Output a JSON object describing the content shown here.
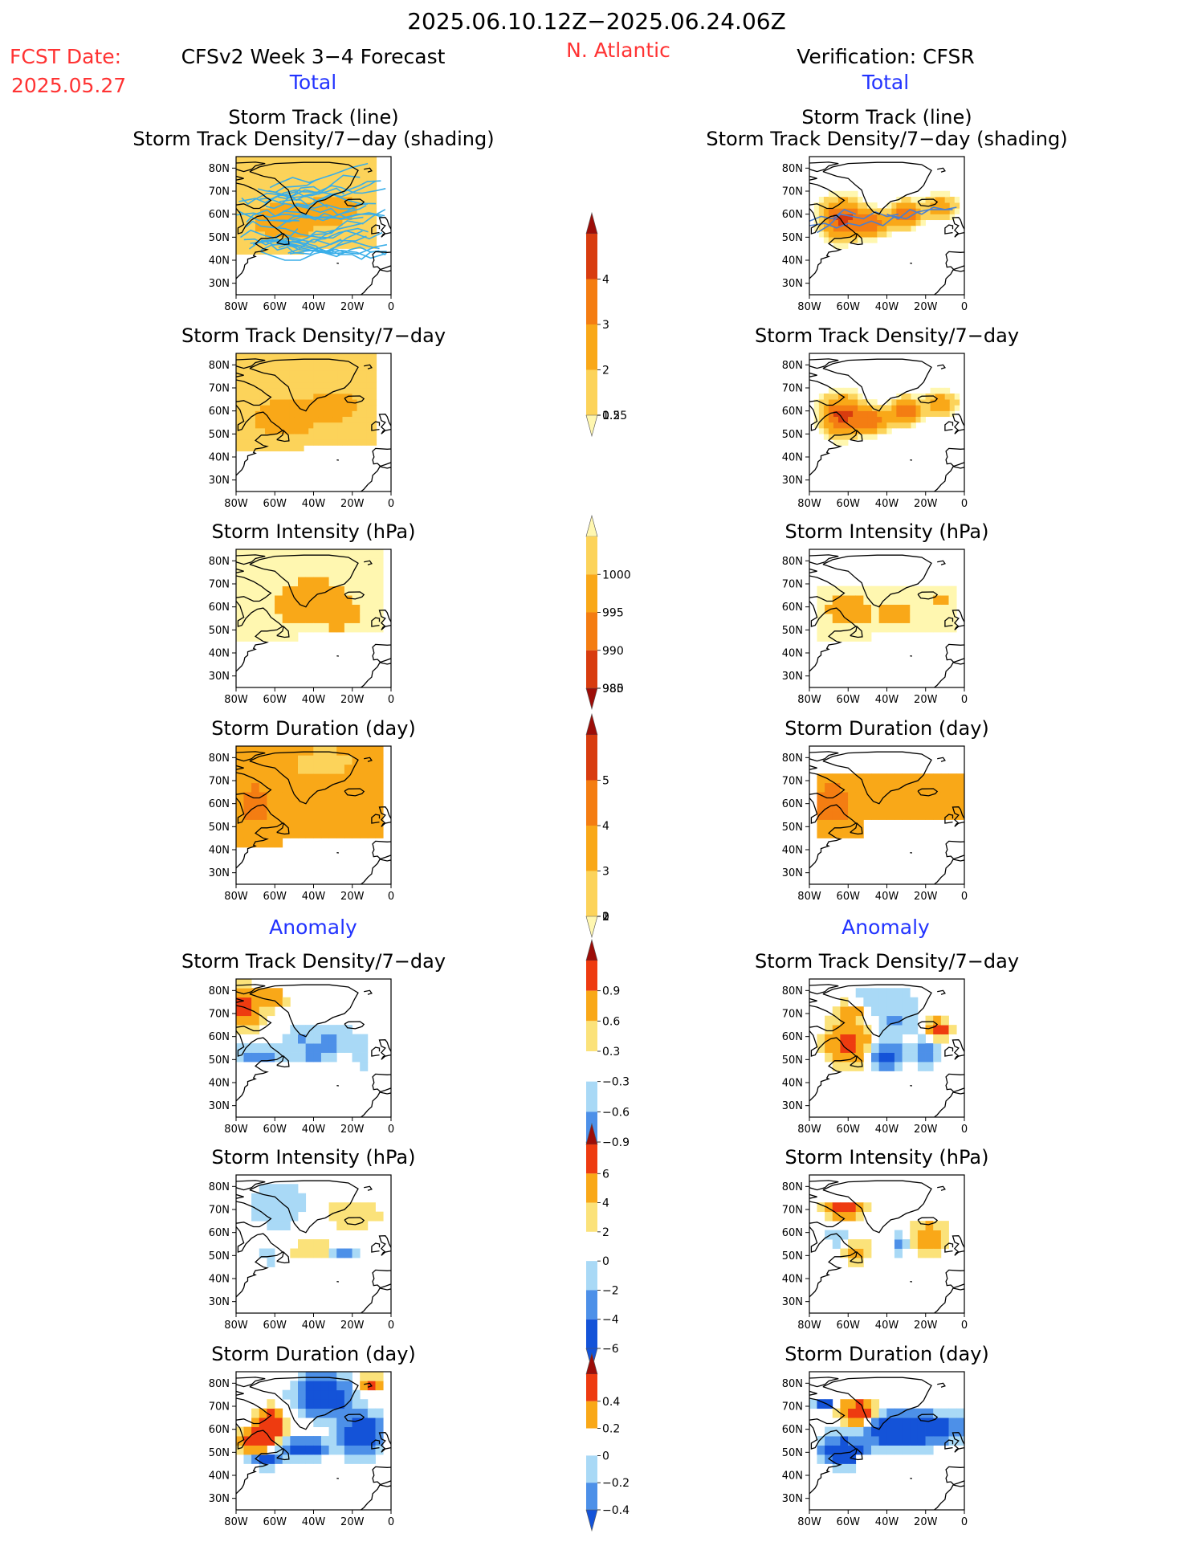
{
  "header": {
    "title": "2025.06.10.12Z−2025.06.24.06Z",
    "fcst_label": "FCST Date:",
    "fcst_date": "2025.05.27",
    "left_title": "CFSv2 Week 3−4 Forecast",
    "region": "N. Atlantic",
    "right_title": "Verification: CFSR",
    "total_label": "Total",
    "anomaly_label": "Anomaly"
  },
  "colors": {
    "seq": [
      "#fff7b0",
      "#fcd35a",
      "#f9a818",
      "#f47d12",
      "#d83c0f",
      "#9c0d08"
    ],
    "div": [
      "#1453d8",
      "#4d90e8",
      "#a9d9f6",
      "#ffffff",
      "#fbe27a",
      "#f9a818",
      "#ee3b10",
      "#9c0d08"
    ],
    "track_line": "#3aaee8"
  },
  "chart_data": [
    {
      "type": "heatmap",
      "panel": "forecast-total-track",
      "title": "Storm Track (line)\nStorm Track Density/7−day (shading)",
      "variable": "Storm Track Density/7-day",
      "lon_range": [
        -80,
        0
      ],
      "lat_range": [
        25,
        85
      ],
      "xticks": [
        "80W",
        "60W",
        "40W",
        "20W",
        "0"
      ],
      "yticks": [
        "30N",
        "40N",
        "50N",
        "60N",
        "70N",
        "80N"
      ],
      "overlay": "storm tracks (line)",
      "field": "FT"
    },
    {
      "type": "heatmap",
      "panel": "verification-total-track",
      "title": "Storm Track (line)\nStorm Track Density/7−day (shading)",
      "variable": "Storm Track Density/7-day",
      "lon_range": [
        -80,
        0
      ],
      "lat_range": [
        25,
        85
      ],
      "xticks": [
        "80W",
        "60W",
        "40W",
        "20W",
        "0"
      ],
      "yticks": [
        "30N",
        "40N",
        "50N",
        "60N",
        "70N",
        "80N"
      ],
      "overlay": "storm tracks (line)",
      "field": "VT"
    },
    {
      "type": "heatmap",
      "panel": "forecast-total-density",
      "title": "Storm Track Density/7−day",
      "variable": "Storm Track Density/7-day",
      "lon_range": [
        -80,
        0
      ],
      "lat_range": [
        25,
        85
      ],
      "xticks": [
        "80W",
        "60W",
        "40W",
        "20W",
        "0"
      ],
      "yticks": [
        "30N",
        "40N",
        "50N",
        "60N",
        "70N",
        "80N"
      ],
      "field": "FT"
    },
    {
      "type": "heatmap",
      "panel": "verification-total-density",
      "title": "Storm Track Density/7−day",
      "variable": "Storm Track Density/7-day",
      "lon_range": [
        -80,
        0
      ],
      "lat_range": [
        25,
        85
      ],
      "xticks": [
        "80W",
        "60W",
        "40W",
        "20W",
        "0"
      ],
      "yticks": [
        "30N",
        "40N",
        "50N",
        "60N",
        "70N",
        "80N"
      ],
      "field": "VT"
    },
    {
      "type": "heatmap",
      "panel": "forecast-total-intensity",
      "title": "Storm Intensity (hPa)",
      "variable": "Storm Intensity",
      "units": "hPa",
      "lon_range": [
        -80,
        0
      ],
      "lat_range": [
        25,
        85
      ],
      "xticks": [
        "80W",
        "60W",
        "40W",
        "20W",
        "0"
      ],
      "yticks": [
        "30N",
        "40N",
        "50N",
        "60N",
        "70N",
        "80N"
      ],
      "field": "FI"
    },
    {
      "type": "heatmap",
      "panel": "verification-total-intensity",
      "title": "Storm Intensity (hPa)",
      "variable": "Storm Intensity",
      "units": "hPa",
      "lon_range": [
        -80,
        0
      ],
      "lat_range": [
        25,
        85
      ],
      "xticks": [
        "80W",
        "60W",
        "40W",
        "20W",
        "0"
      ],
      "yticks": [
        "30N",
        "40N",
        "50N",
        "60N",
        "70N",
        "80N"
      ],
      "field": "VI"
    },
    {
      "type": "heatmap",
      "panel": "forecast-total-duration",
      "title": "Storm Duration (day)",
      "variable": "Storm Duration",
      "units": "day",
      "lon_range": [
        -80,
        0
      ],
      "lat_range": [
        25,
        85
      ],
      "xticks": [
        "80W",
        "60W",
        "40W",
        "20W",
        "0"
      ],
      "yticks": [
        "30N",
        "40N",
        "50N",
        "60N",
        "70N",
        "80N"
      ],
      "field": "FD"
    },
    {
      "type": "heatmap",
      "panel": "verification-total-duration",
      "title": "Storm Duration (day)",
      "variable": "Storm Duration",
      "units": "day",
      "lon_range": [
        -80,
        0
      ],
      "lat_range": [
        25,
        85
      ],
      "xticks": [
        "80W",
        "60W",
        "40W",
        "20W",
        "0"
      ],
      "yticks": [
        "30N",
        "40N",
        "50N",
        "60N",
        "70N",
        "80N"
      ],
      "field": "VD"
    },
    {
      "type": "heatmap",
      "panel": "forecast-anomaly-density",
      "title": "Storm Track Density/7−day",
      "variable": "Storm Track Density/7-day anomaly",
      "lon_range": [
        -80,
        0
      ],
      "lat_range": [
        25,
        85
      ],
      "xticks": [
        "80W",
        "60W",
        "40W",
        "20W",
        "0"
      ],
      "yticks": [
        "30N",
        "40N",
        "50N",
        "60N",
        "70N",
        "80N"
      ],
      "field": "FAT"
    },
    {
      "type": "heatmap",
      "panel": "verification-anomaly-density",
      "title": "Storm Track Density/7−day",
      "variable": "Storm Track Density/7-day anomaly",
      "lon_range": [
        -80,
        0
      ],
      "lat_range": [
        25,
        85
      ],
      "xticks": [
        "80W",
        "60W",
        "40W",
        "20W",
        "0"
      ],
      "yticks": [
        "30N",
        "40N",
        "50N",
        "60N",
        "70N",
        "80N"
      ],
      "field": "VAT"
    },
    {
      "type": "heatmap",
      "panel": "forecast-anomaly-intensity",
      "title": "Storm Intensity (hPa)",
      "variable": "Storm Intensity anomaly",
      "units": "hPa",
      "lon_range": [
        -80,
        0
      ],
      "lat_range": [
        25,
        85
      ],
      "xticks": [
        "80W",
        "60W",
        "40W",
        "20W",
        "0"
      ],
      "yticks": [
        "30N",
        "40N",
        "50N",
        "60N",
        "70N",
        "80N"
      ],
      "field": "FAI"
    },
    {
      "type": "heatmap",
      "panel": "verification-anomaly-intensity",
      "title": "Storm Intensity (hPa)",
      "variable": "Storm Intensity anomaly",
      "units": "hPa",
      "lon_range": [
        -80,
        0
      ],
      "lat_range": [
        25,
        85
      ],
      "xticks": [
        "80W",
        "60W",
        "40W",
        "20W",
        "0"
      ],
      "yticks": [
        "30N",
        "40N",
        "50N",
        "60N",
        "70N",
        "80N"
      ],
      "field": "VAI"
    },
    {
      "type": "heatmap",
      "panel": "forecast-anomaly-duration",
      "title": "Storm Duration (day)",
      "variable": "Storm Duration anomaly",
      "units": "day",
      "lon_range": [
        -80,
        0
      ],
      "lat_range": [
        25,
        85
      ],
      "xticks": [
        "80W",
        "60W",
        "40W",
        "20W",
        "0"
      ],
      "yticks": [
        "30N",
        "40N",
        "50N",
        "60N",
        "70N",
        "80N"
      ],
      "field": "FAD"
    },
    {
      "type": "heatmap",
      "panel": "verification-anomaly-duration",
      "title": "Storm Duration (day)",
      "variable": "Storm Duration anomaly",
      "units": "day",
      "lon_range": [
        -80,
        0
      ],
      "lat_range": [
        25,
        85
      ],
      "xticks": [
        "80W",
        "60W",
        "40W",
        "20W",
        "0"
      ],
      "yticks": [
        "30N",
        "40N",
        "50N",
        "60N",
        "70N",
        "80N"
      ],
      "field": "VAD"
    }
  ],
  "colorbars": [
    {
      "name": "track-density",
      "labels": [
        "4",
        "3",
        "2",
        "1",
        "0.5",
        "0.25"
      ],
      "palette": "seq",
      "order": "dark-top"
    },
    {
      "name": "intensity",
      "labels": [
        "1000",
        "995",
        "990",
        "985",
        "980"
      ],
      "palette": "seq",
      "order": "light-top"
    },
    {
      "name": "duration",
      "labels": [
        "5",
        "4",
        "3",
        "2",
        "1",
        "0"
      ],
      "palette": "seq",
      "order": "dark-top"
    },
    {
      "name": "anom-density",
      "labels": [
        "0.9",
        "0.6",
        "0.3",
        "−0.3",
        "−0.6",
        "−0.9"
      ],
      "palette": "div"
    },
    {
      "name": "anom-intensity",
      "labels": [
        "6",
        "4",
        "2",
        "0",
        "−2",
        "−4",
        "−6"
      ],
      "palette": "div"
    },
    {
      "name": "anom-duration",
      "labels": [
        "0.4",
        "0.2",
        "0",
        "−0.2",
        "−0.4"
      ],
      "palette": "div"
    }
  ]
}
